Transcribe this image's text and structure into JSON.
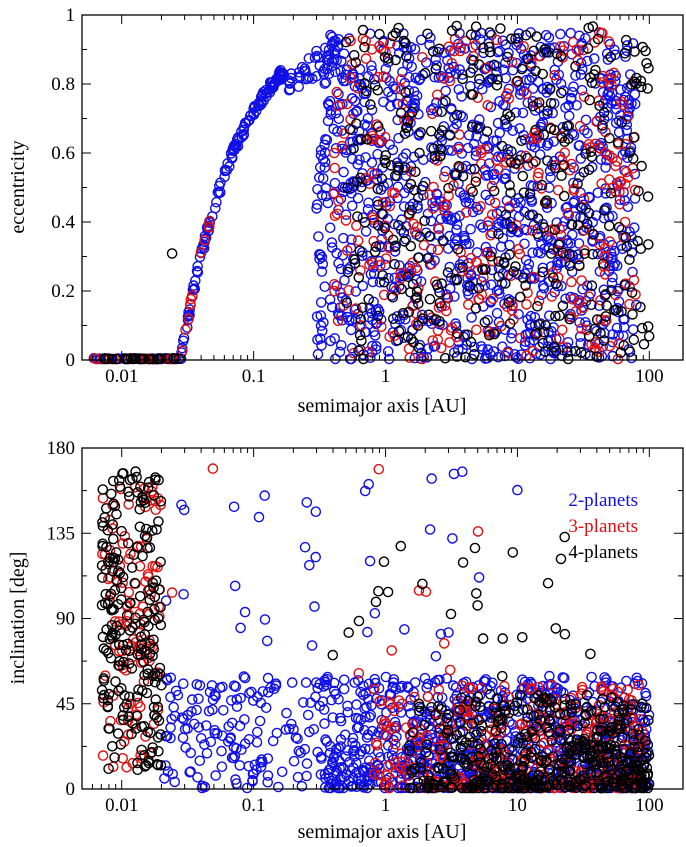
{
  "colors": {
    "two": "#1010e6",
    "three": "#e01010",
    "four": "#000000"
  },
  "chart_data": [
    {
      "type": "scatter",
      "id": "top",
      "xlabel": "semimajor axis  [AU]",
      "ylabel": "eccentricity",
      "xscale": "log",
      "xlim": [
        0.005,
        180
      ],
      "ylim": [
        0,
        1
      ],
      "xticks": [
        0.01,
        0.1,
        1,
        10,
        100
      ],
      "xticklabels": [
        "0.01",
        "0.1",
        "1",
        "10",
        "100"
      ],
      "yticks": [
        0,
        0.2,
        0.4,
        0.6,
        0.8,
        1
      ],
      "yticklabels": [
        "0",
        "0.2",
        "0.4",
        "0.6",
        "0.8",
        "1"
      ],
      "series": [
        {
          "name": "2-planets",
          "color_key": "two",
          "clusters": [
            {
              "xr": [
                0.3,
                80
              ],
              "yr": [
                0.0,
                0.95
              ],
              "n": 1100,
              "mode": "spread"
            },
            {
              "xr": [
                0.028,
                0.17
              ],
              "yr": [
                0,
                0
              ],
              "n": 130,
              "mode": "curveE"
            },
            {
              "xr": [
                0.17,
                0.45
              ],
              "yr": [
                0,
                0
              ],
              "n": 45,
              "mode": "curveE2"
            },
            {
              "xr": [
                0.006,
                0.03
              ],
              "yr": [
                0.0,
                0.005
              ],
              "n": 35,
              "mode": "box"
            }
          ]
        },
        {
          "name": "3-planets",
          "color_key": "three",
          "clusters": [
            {
              "xr": [
                0.4,
                80
              ],
              "yr": [
                0.0,
                0.95
              ],
              "n": 330,
              "mode": "spread"
            },
            {
              "xr": [
                0.028,
                0.05
              ],
              "yr": [
                0,
                0
              ],
              "n": 12,
              "mode": "curveE"
            },
            {
              "xr": [
                0.006,
                0.025
              ],
              "yr": [
                0.0,
                0.005
              ],
              "n": 20,
              "mode": "box"
            }
          ]
        },
        {
          "name": "4-planets",
          "color_key": "four",
          "clusters": [
            {
              "xr": [
                0.5,
                100
              ],
              "yr": [
                0.0,
                0.97
              ],
              "n": 380,
              "mode": "spread"
            },
            {
              "xr": [
                0.006,
                0.03
              ],
              "yr": [
                0.0,
                0.005
              ],
              "n": 30,
              "mode": "box"
            },
            {
              "xr": [
                0.024,
                0.026
              ],
              "yr": [
                0.3,
                0.31
              ],
              "n": 1,
              "mode": "box"
            }
          ]
        }
      ]
    },
    {
      "type": "scatter",
      "id": "bottom",
      "xlabel": "semimajor axis  [AU]",
      "ylabel": "inclination  [deg]",
      "xscale": "log",
      "xlim": [
        0.005,
        180
      ],
      "ylim": [
        0,
        180
      ],
      "xticks": [
        0.01,
        0.1,
        1,
        10,
        100
      ],
      "xticklabels": [
        "0.01",
        "0.1",
        "1",
        "10",
        "100"
      ],
      "yticks": [
        0,
        45,
        90,
        135,
        180
      ],
      "yticklabels": [
        "0",
        "45",
        "90",
        "135",
        "180"
      ],
      "legend": {
        "position": "top-right",
        "entries": [
          {
            "label": "2-planets",
            "color_key": "two"
          },
          {
            "label": "3-planets",
            "color_key": "three"
          },
          {
            "label": "4-planets",
            "color_key": "four"
          }
        ]
      },
      "series": [
        {
          "name": "2-planets",
          "color_key": "two",
          "clusters": [
            {
              "xr": [
                0.3,
                100
              ],
              "yr": [
                0,
                60
              ],
              "n": 900,
              "mode": "incl"
            },
            {
              "xr": [
                0.02,
                0.4
              ],
              "yr": [
                0,
                60
              ],
              "n": 160,
              "mode": "box"
            },
            {
              "xr": [
                0.02,
                10
              ],
              "yr": [
                60,
                170
              ],
              "n": 35,
              "mode": "box"
            }
          ]
        },
        {
          "name": "3-planets",
          "color_key": "three",
          "clusters": [
            {
              "xr": [
                0.007,
                0.02
              ],
              "yr": [
                10,
                160
              ],
              "n": 110,
              "mode": "box"
            },
            {
              "xr": [
                0.8,
                90
              ],
              "yr": [
                0,
                55
              ],
              "n": 330,
              "mode": "incl"
            },
            {
              "xr": [
                0.02,
                10
              ],
              "yr": [
                60,
                170
              ],
              "n": 10,
              "mode": "box"
            }
          ]
        },
        {
          "name": "4-planets",
          "color_key": "four",
          "clusters": [
            {
              "xr": [
                0.007,
                0.02
              ],
              "yr": [
                10,
                168
              ],
              "n": 220,
              "mode": "box"
            },
            {
              "xr": [
                1.5,
                100
              ],
              "yr": [
                0,
                50
              ],
              "n": 500,
              "mode": "incl"
            },
            {
              "xr": [
                0.3,
                40
              ],
              "yr": [
                55,
                140
              ],
              "n": 25,
              "mode": "box"
            }
          ]
        }
      ]
    }
  ]
}
